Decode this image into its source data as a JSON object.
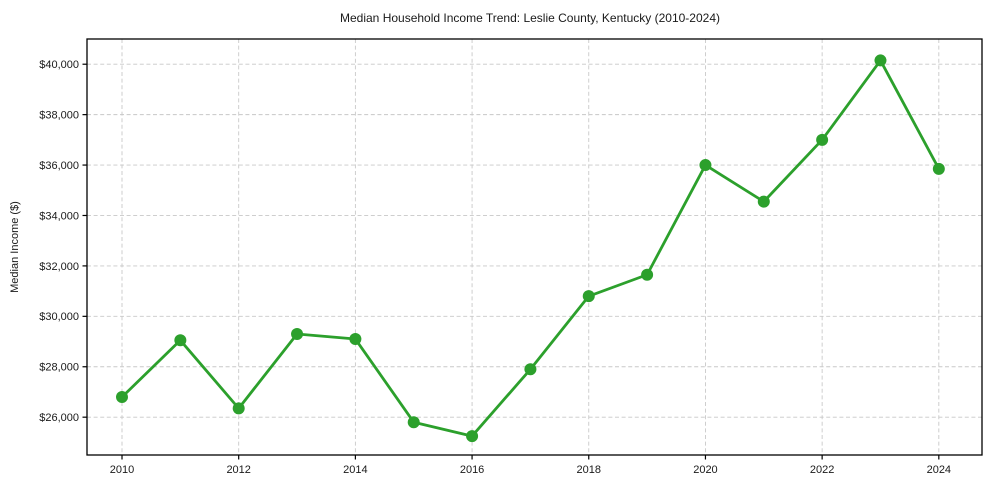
{
  "chart_data": {
    "type": "line",
    "title": "Median Household Income Trend: Leslie County, Kentucky (2010-2024)",
    "xlabel": "",
    "ylabel": "Median Income ($)",
    "series": [
      {
        "name": "Median Household Income",
        "x": [
          2010,
          2011,
          2012,
          2013,
          2014,
          2015,
          2016,
          2017,
          2018,
          2019,
          2020,
          2021,
          2022,
          2023,
          2024
        ],
        "values": [
          26800,
          29050,
          26350,
          29300,
          29100,
          25800,
          25250,
          27900,
          30800,
          31650,
          36000,
          34550,
          37000,
          40150,
          35850
        ],
        "line_color": "#2ca02c",
        "marker": "circle"
      }
    ],
    "xticks": [
      2010,
      2012,
      2014,
      2016,
      2018,
      2020,
      2022,
      2024
    ],
    "xtick_labels": [
      "2010",
      "2012",
      "2014",
      "2016",
      "2018",
      "2020",
      "2022",
      "2024"
    ],
    "yticks": [
      26000,
      28000,
      30000,
      32000,
      34000,
      36000,
      38000,
      40000
    ],
    "ytick_labels": [
      "$26,000",
      "$28,000",
      "$30,000",
      "$32,000",
      "$34,000",
      "$36,000",
      "$38,000",
      "$40,000"
    ],
    "xlim": [
      2009.4,
      2024.74
    ],
    "ylim": [
      24500,
      41000
    ],
    "grid": true,
    "grid_style": "dashed",
    "grid_color": "#c8c8c8",
    "plot_border_color": "#000000",
    "background": "#ffffff",
    "legend": "none"
  }
}
